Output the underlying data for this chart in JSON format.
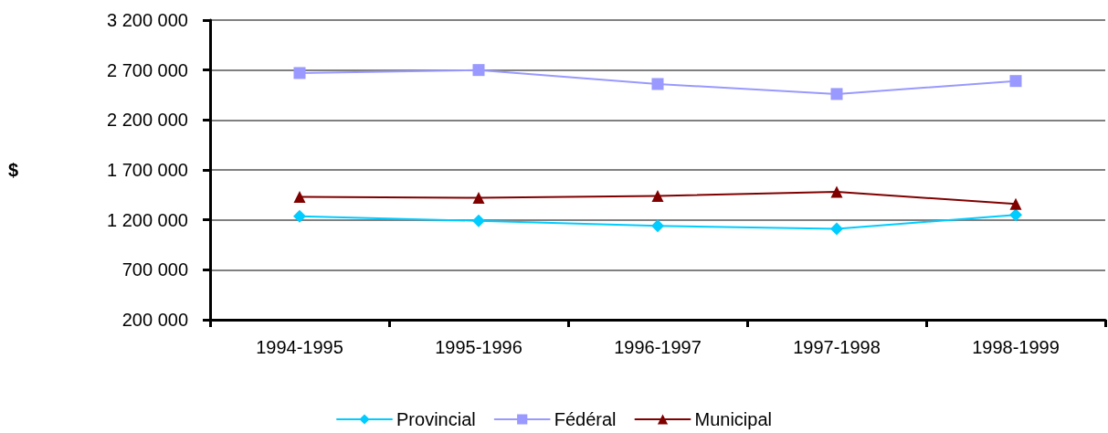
{
  "chart_data": {
    "type": "line",
    "ylabel": "$",
    "categories": [
      "1994-1995",
      "1995-1996",
      "1996-1997",
      "1997-1998",
      "1998-1999"
    ],
    "series": [
      {
        "name": "Provincial",
        "color": "#00ccff",
        "marker": "diamond",
        "values": [
          1235000,
          1190000,
          1140000,
          1110000,
          1250000
        ]
      },
      {
        "name": "Fédéral",
        "color": "#9999ff",
        "marker": "square",
        "values": [
          2670000,
          2700000,
          2560000,
          2460000,
          2590000
        ]
      },
      {
        "name": "Municipal",
        "color": "#800000",
        "marker": "triangle",
        "values": [
          1430000,
          1420000,
          1440000,
          1480000,
          1360000
        ]
      }
    ],
    "ylim": [
      200000,
      3200000
    ],
    "yticks": [
      {
        "value": 200000,
        "label": "200 000"
      },
      {
        "value": 700000,
        "label": "700 000"
      },
      {
        "value": 1200000,
        "label": "1 200 000"
      },
      {
        "value": 1700000,
        "label": "1 700 000"
      },
      {
        "value": 2200000,
        "label": "2 200 000"
      },
      {
        "value": 2700000,
        "label": "2 700 000"
      },
      {
        "value": 3200000,
        "label": "3 200 000"
      }
    ],
    "grid": "y",
    "legend": "bottom",
    "line_style": "solid"
  }
}
